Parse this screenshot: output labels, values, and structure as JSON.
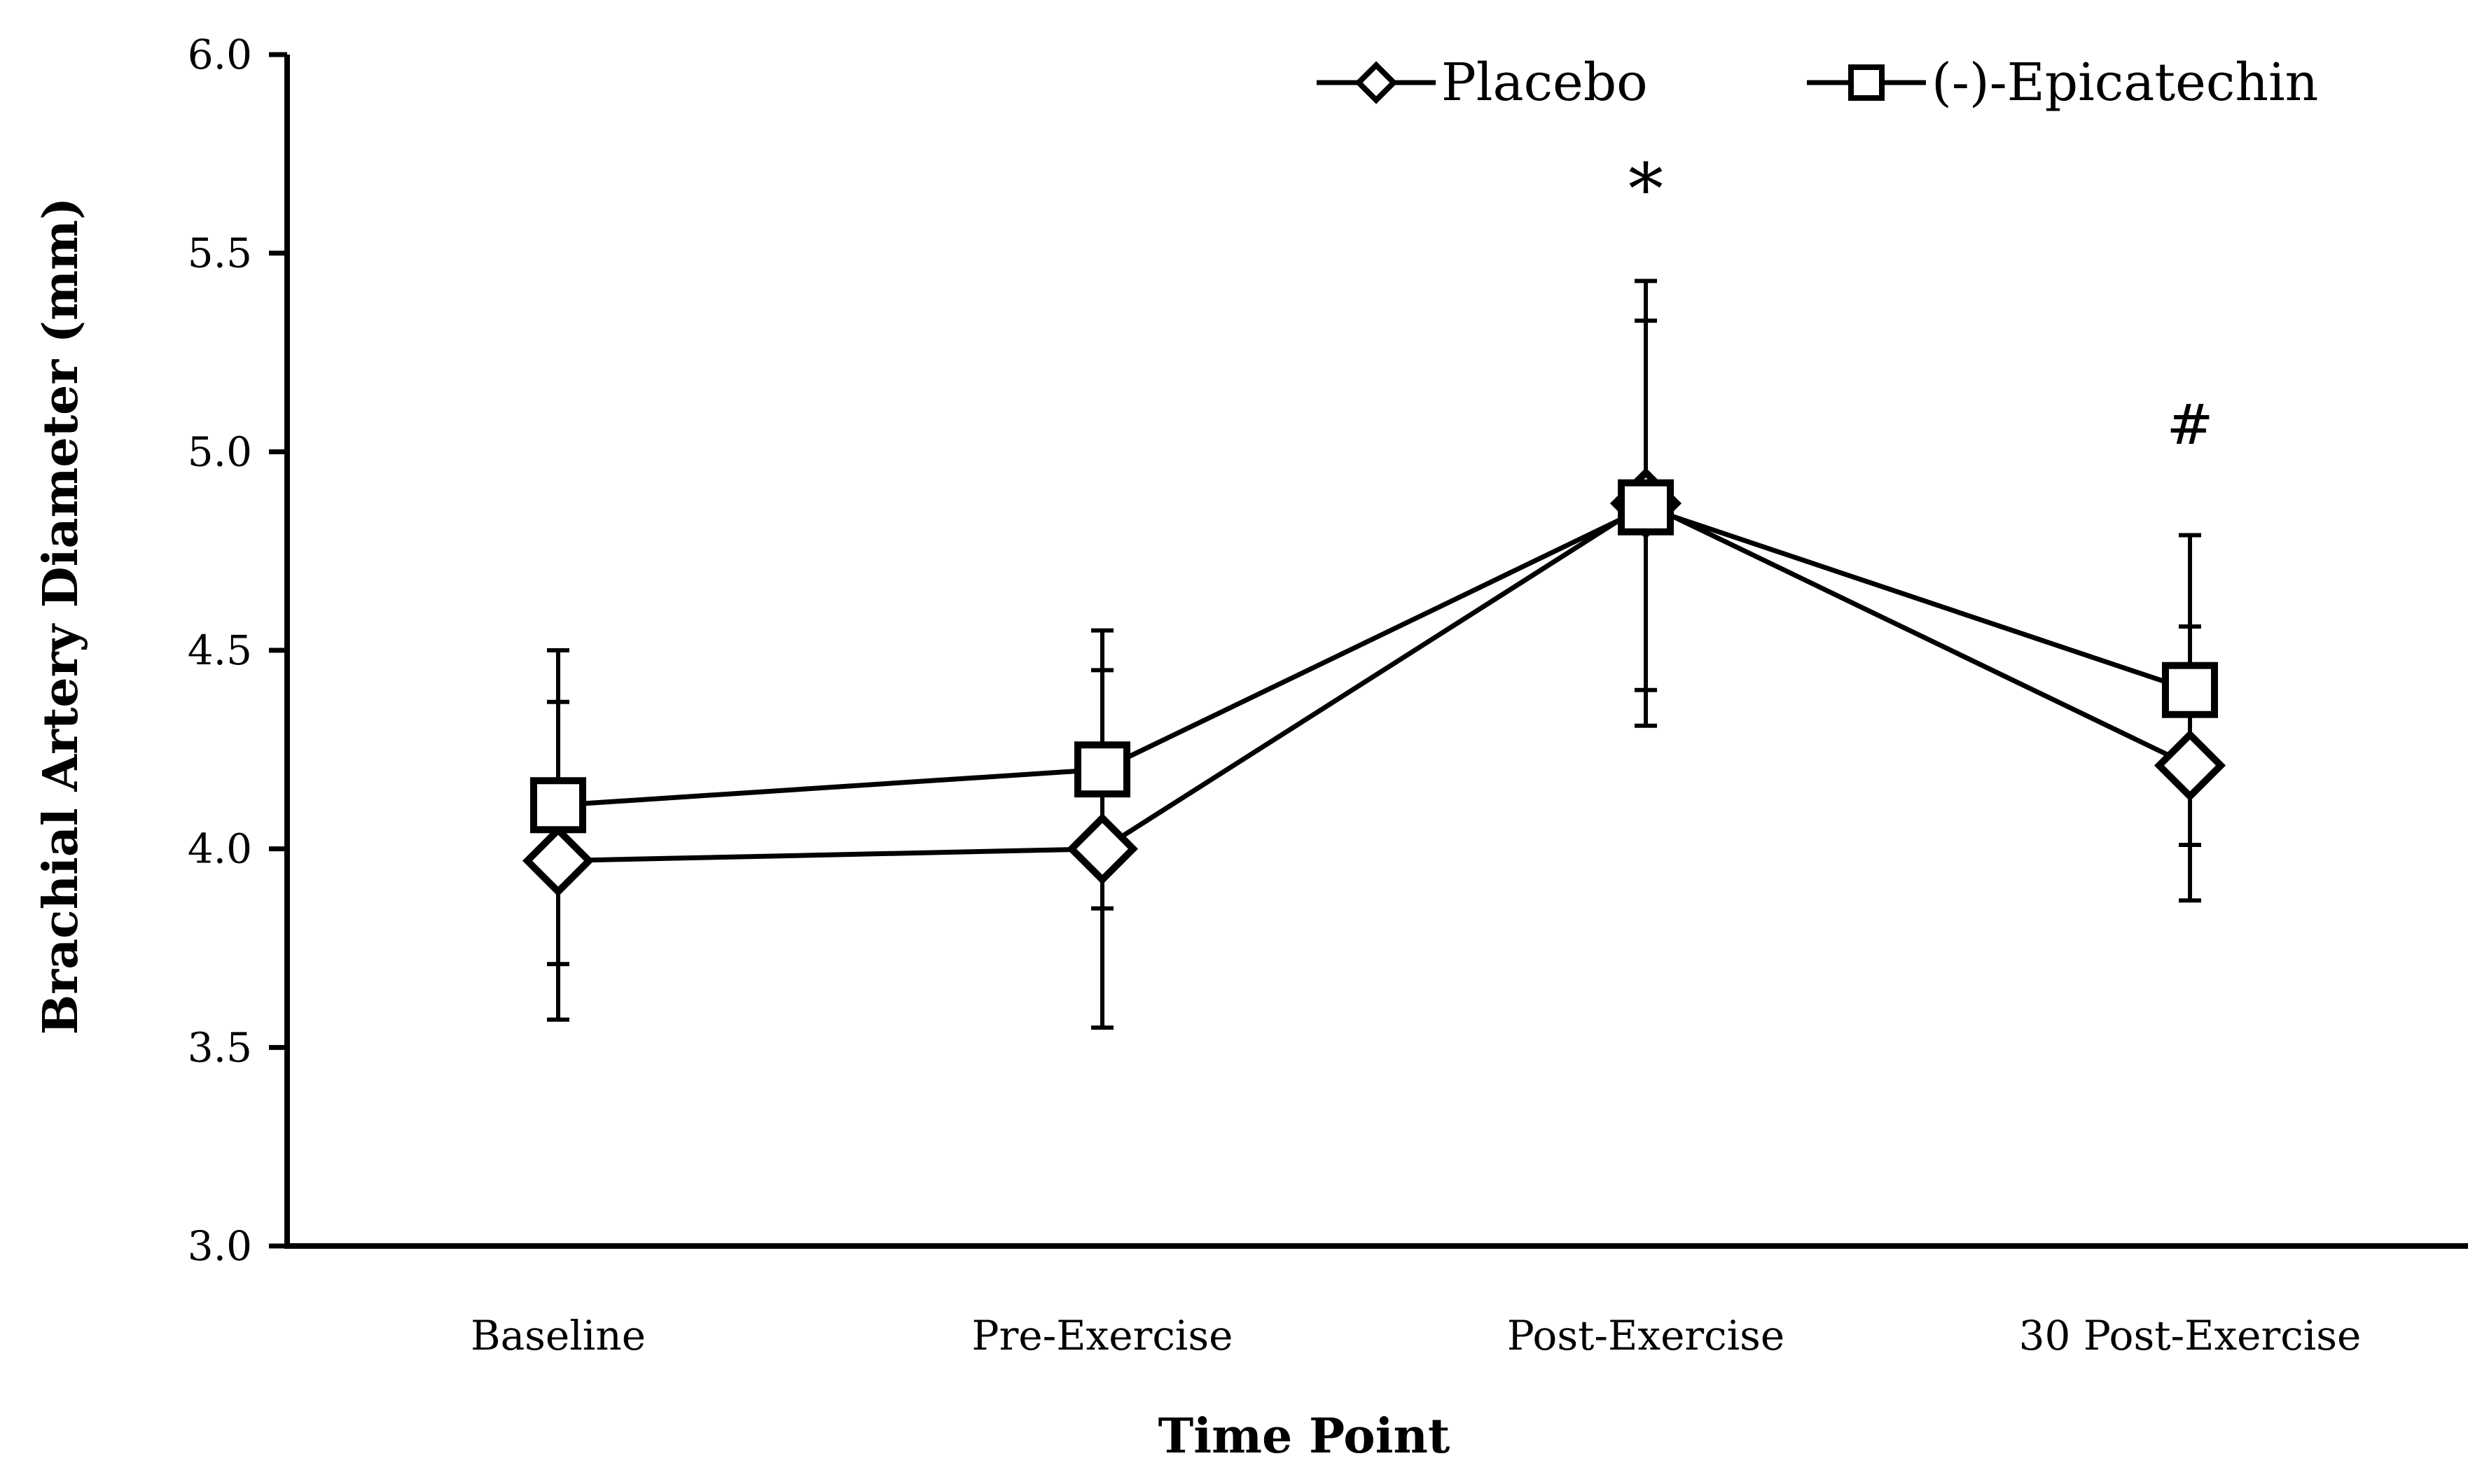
{
  "chart_data": {
    "type": "line",
    "title": "",
    "xlabel": "Time Point",
    "ylabel": "Brachial Artery Diameter (mm)",
    "categories": [
      "Baseline",
      "Pre-Exercise",
      "Post-Exercise",
      "30 Post-Exercise"
    ],
    "ylim": [
      3.0,
      6.0
    ],
    "yticks": [
      "3.0",
      "3.5",
      "4.0",
      "4.5",
      "5.0",
      "5.5",
      "6.0"
    ],
    "grid": false,
    "legend": "top-right",
    "series": [
      {
        "name": "Placebo",
        "marker": "diamond",
        "values": [
          3.97,
          4.0,
          4.87,
          4.21
        ],
        "err_low": [
          3.57,
          3.55,
          4.31,
          3.87
        ],
        "err_high": [
          4.37,
          4.45,
          5.43,
          4.56
        ]
      },
      {
        "name": "(-)-Epicatechin",
        "marker": "square",
        "values": [
          4.11,
          4.2,
          4.86,
          4.4
        ],
        "err_low": [
          3.71,
          3.85,
          4.4,
          4.01
        ],
        "err_high": [
          4.5,
          4.55,
          5.33,
          4.79
        ]
      }
    ],
    "annotations": [
      {
        "text": "*",
        "category": "Post-Exercise",
        "y": 5.6
      },
      {
        "text": "#",
        "category": "30 Post-Exercise",
        "y": 5.02
      }
    ]
  }
}
